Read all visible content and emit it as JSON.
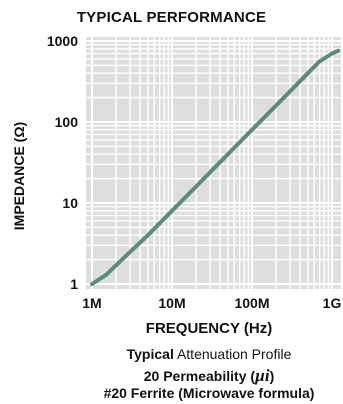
{
  "chart_data": {
    "type": "line",
    "title": "TYPICAL PERFORMANCE",
    "xlabel": "FREQUENCY (Hz)",
    "ylabel": "IMPEDANCE (Ω)",
    "x_scale": "log",
    "y_scale": "log",
    "xlim": [
      1000000,
      1200000000
    ],
    "ylim": [
      1,
      1000
    ],
    "x_ticks": [
      {
        "value": 1000000,
        "label": "1M"
      },
      {
        "value": 10000000,
        "label": "10M"
      },
      {
        "value": 100000000,
        "label": "100M"
      },
      {
        "value": 1000000000,
        "label": "1G"
      }
    ],
    "y_ticks": [
      {
        "value": 1,
        "label": "1"
      },
      {
        "value": 10,
        "label": "10"
      },
      {
        "value": 100,
        "label": "100"
      },
      {
        "value": 1000,
        "label": "1000"
      }
    ],
    "grid": true,
    "series": [
      {
        "color": "#5b8c7a",
        "points": [
          [
            1000000,
            1.0
          ],
          [
            1500000,
            1.3
          ],
          [
            2000000,
            1.7
          ],
          [
            3000000,
            2.5
          ],
          [
            5000000,
            4.0
          ],
          [
            7000000,
            5.6
          ],
          [
            10000000,
            8.0
          ],
          [
            20000000,
            16
          ],
          [
            30000000,
            24
          ],
          [
            50000000,
            40
          ],
          [
            70000000,
            56
          ],
          [
            100000000,
            80
          ],
          [
            200000000,
            160
          ],
          [
            300000000,
            240
          ],
          [
            500000000,
            400
          ],
          [
            700000000,
            560
          ],
          [
            1000000000,
            700
          ],
          [
            1200000000,
            760
          ]
        ]
      }
    ]
  },
  "caption": {
    "line1_bold": "Typical",
    "line1_rest": " Attenuation Profile",
    "line2_prefix": "20 Permeability (",
    "line2_symbol": "µi",
    "line2_suffix": ")",
    "line3": "#20 Ferrite (Microwave formula)"
  },
  "colors": {
    "grid": "#d2d2d2",
    "plot_background": "#dedede",
    "line": "#5b8c7a"
  }
}
